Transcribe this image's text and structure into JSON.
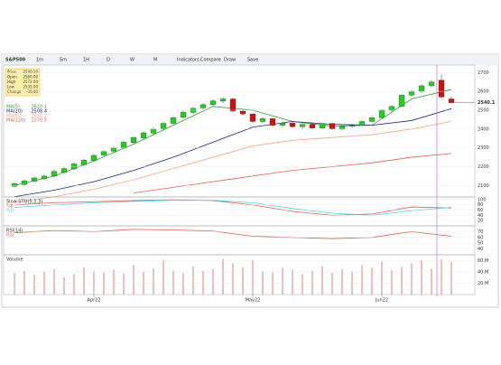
{
  "toolbar": {
    "symbol": "S&P500",
    "items": [
      "1m",
      "5m",
      "1H",
      "D",
      "W",
      "M",
      "Indicators",
      "Compare",
      "Draw",
      "Save"
    ]
  },
  "info_box": {
    "rows": [
      [
        "Price",
        "2540.10"
      ],
      [
        "Open",
        "2560.00"
      ],
      [
        "High",
        "2572.00"
      ],
      [
        "Low",
        "2535.00"
      ],
      [
        "Change",
        "-30.00"
      ]
    ]
  },
  "main": {
    "ylim": [
      2039,
      2740
    ],
    "yticks": [
      2100,
      2200,
      2300,
      2400,
      2500,
      2600,
      2700
    ],
    "last": {
      "value": 2540.1,
      "label": "2540.1"
    },
    "candles": [
      [
        2095,
        2118,
        2090,
        2110
      ],
      [
        2105,
        2132,
        2100,
        2125
      ],
      [
        2122,
        2148,
        2118,
        2140
      ],
      [
        2135,
        2158,
        2130,
        2150
      ],
      [
        2150,
        2182,
        2145,
        2175
      ],
      [
        2170,
        2198,
        2165,
        2190
      ],
      [
        2188,
        2222,
        2182,
        2215
      ],
      [
        2210,
        2242,
        2205,
        2235
      ],
      [
        2232,
        2268,
        2228,
        2260
      ],
      [
        2262,
        2288,
        2255,
        2280
      ],
      [
        2282,
        2308,
        2275,
        2300
      ],
      [
        2300,
        2338,
        2295,
        2330
      ],
      [
        2328,
        2362,
        2322,
        2355
      ],
      [
        2352,
        2388,
        2345,
        2380
      ],
      [
        2378,
        2408,
        2370,
        2400
      ],
      [
        2402,
        2438,
        2395,
        2430
      ],
      [
        2430,
        2468,
        2425,
        2460
      ],
      [
        2462,
        2498,
        2455,
        2490
      ],
      [
        2488,
        2518,
        2480,
        2510
      ],
      [
        2512,
        2538,
        2505,
        2530
      ],
      [
        2530,
        2558,
        2522,
        2550
      ],
      [
        2548,
        2570,
        2538,
        2560
      ],
      [
        2560,
        2565,
        2488,
        2495
      ],
      [
        2495,
        2505,
        2470,
        2480
      ],
      [
        2480,
        2485,
        2432,
        2440
      ],
      [
        2440,
        2462,
        2430,
        2455
      ],
      [
        2455,
        2460,
        2412,
        2420
      ],
      [
        2420,
        2440,
        2410,
        2432
      ],
      [
        2432,
        2438,
        2405,
        2412
      ],
      [
        2412,
        2432,
        2402,
        2425
      ],
      [
        2425,
        2430,
        2398,
        2405
      ],
      [
        2405,
        2435,
        2400,
        2430
      ],
      [
        2430,
        2432,
        2395,
        2400
      ],
      [
        2400,
        2420,
        2392,
        2415
      ],
      [
        2415,
        2428,
        2405,
        2420
      ],
      [
        2420,
        2448,
        2415,
        2440
      ],
      [
        2440,
        2468,
        2435,
        2460
      ],
      [
        2460,
        2505,
        2455,
        2500
      ],
      [
        2500,
        2528,
        2490,
        2520
      ],
      [
        2520,
        2585,
        2515,
        2580
      ],
      [
        2580,
        2608,
        2572,
        2600
      ],
      [
        2600,
        2638,
        2592,
        2630
      ],
      [
        2630,
        2660,
        2620,
        2650
      ],
      [
        2660,
        2690,
        2560,
        2570
      ],
      [
        2560,
        2572,
        2535,
        2540
      ]
    ],
    "line_x": [
      0,
      4,
      8,
      12,
      16,
      20,
      24,
      28,
      32,
      36,
      40,
      44
    ],
    "lines": [
      {
        "name": "MA(5)",
        "color": "#2ca02c",
        "legend": 2610.1,
        "values": [
          2100,
          2150,
          2230,
          2320,
          2420,
          2520,
          2500,
          2440,
          2415,
          2420,
          2560,
          2610
        ]
      },
      {
        "name": "MA(20)",
        "color": "#1a237e",
        "legend": 2508.4,
        "values": [
          2040,
          2075,
          2120,
          2180,
          2250,
          2330,
          2410,
          2440,
          2425,
          2420,
          2445,
          2508
        ]
      },
      {
        "name": "MA(60)",
        "color": "#f4a582",
        "legend": 2440.2,
        "values": [
          2010,
          2040,
          2080,
          2130,
          2190,
          2250,
          2310,
          2340,
          2355,
          2370,
          2400,
          2440
        ]
      },
      {
        "name": "MA(120)",
        "color": "#d6604d",
        "legend": 2270.5,
        "values": [
          null,
          null,
          null,
          2060,
          2090,
          2120,
          2150,
          2180,
          2200,
          2220,
          2250,
          2270
        ]
      }
    ]
  },
  "stoch": {
    "title": "Slow STO(5,3,3)",
    "ylim": [
      0,
      110
    ],
    "yticks": [
      20,
      40,
      60,
      80,
      100
    ],
    "lines": [
      {
        "name": "%K",
        "color": "#d6604d",
        "values": [
          80,
          88,
          92,
          96,
          100,
          96,
          80,
          55,
          40,
          45,
          72,
          68
        ]
      },
      {
        "name": "%D",
        "color": "#4dd0e1",
        "values": [
          70,
          80,
          88,
          93,
          97,
          97,
          88,
          66,
          48,
          40,
          58,
          70
        ]
      }
    ]
  },
  "rsi": {
    "title": "RSI(14)",
    "ylim": [
      30,
      80
    ],
    "yticks": [
      40,
      50,
      60,
      70
    ],
    "lines": [
      {
        "name": "RSI",
        "color": "#d6604d",
        "values": [
          68,
          72,
          70,
          74,
          73,
          71,
          62,
          60,
          58,
          60,
          70,
          62
        ]
      }
    ]
  },
  "volume": {
    "title": "Volume",
    "ylim": [
      0,
      70
    ],
    "yticks": [
      {
        "value": 20,
        "label": "20.M"
      },
      {
        "value": 40,
        "label": "40.M"
      },
      {
        "value": 60,
        "label": "60.M"
      }
    ],
    "color": "#d6604d",
    "values": [
      38,
      42,
      35,
      40,
      45,
      30,
      36,
      48,
      41,
      39,
      44,
      37,
      52,
      40,
      46,
      61,
      43,
      38,
      50,
      42,
      45,
      63,
      55,
      48,
      60,
      41,
      39,
      47,
      44,
      36,
      42,
      50,
      38,
      45,
      40,
      52,
      47,
      58,
      43,
      49,
      55,
      60,
      46,
      62,
      58
    ]
  },
  "dates": [
    {
      "at": 8,
      "label": "Apr22"
    },
    {
      "at": 24,
      "label": "May22"
    },
    {
      "at": 37,
      "label": "Jun22"
    }
  ]
}
